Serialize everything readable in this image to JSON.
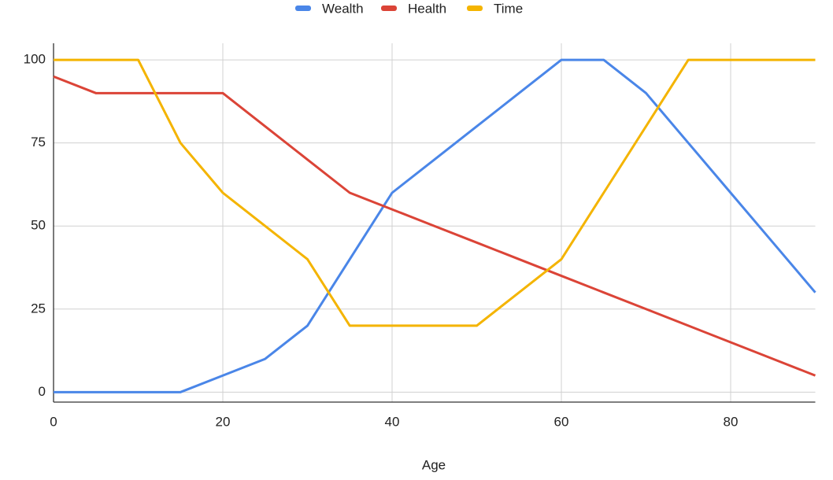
{
  "chart_data": {
    "type": "line",
    "x_label": "Age",
    "x": [
      0,
      5,
      10,
      15,
      20,
      25,
      30,
      35,
      40,
      45,
      50,
      55,
      60,
      65,
      70,
      75,
      80,
      85,
      90
    ],
    "series": [
      {
        "name": "Wealth",
        "color": "#4a86e8",
        "values": [
          0,
          0,
          0,
          0,
          5,
          10,
          20,
          40,
          60,
          70,
          80,
          90,
          100,
          100,
          90,
          75,
          60,
          45,
          30
        ]
      },
      {
        "name": "Health",
        "color": "#db4437",
        "values": [
          95,
          90,
          90,
          90,
          90,
          80,
          70,
          60,
          55,
          50,
          45,
          40,
          35,
          30,
          25,
          20,
          15,
          10,
          5
        ]
      },
      {
        "name": "Time",
        "color": "#f4b400",
        "values": [
          100,
          100,
          100,
          75,
          60,
          50,
          40,
          20,
          20,
          20,
          20,
          30,
          40,
          60,
          80,
          100,
          100,
          100,
          100
        ]
      }
    ],
    "xlim": [
      0,
      90
    ],
    "xticks": [
      0,
      20,
      40,
      60,
      80
    ],
    "ylim": [
      -3,
      105
    ],
    "yticks": [
      0,
      25,
      50,
      75,
      100
    ],
    "grid": true,
    "legend": "top"
  }
}
